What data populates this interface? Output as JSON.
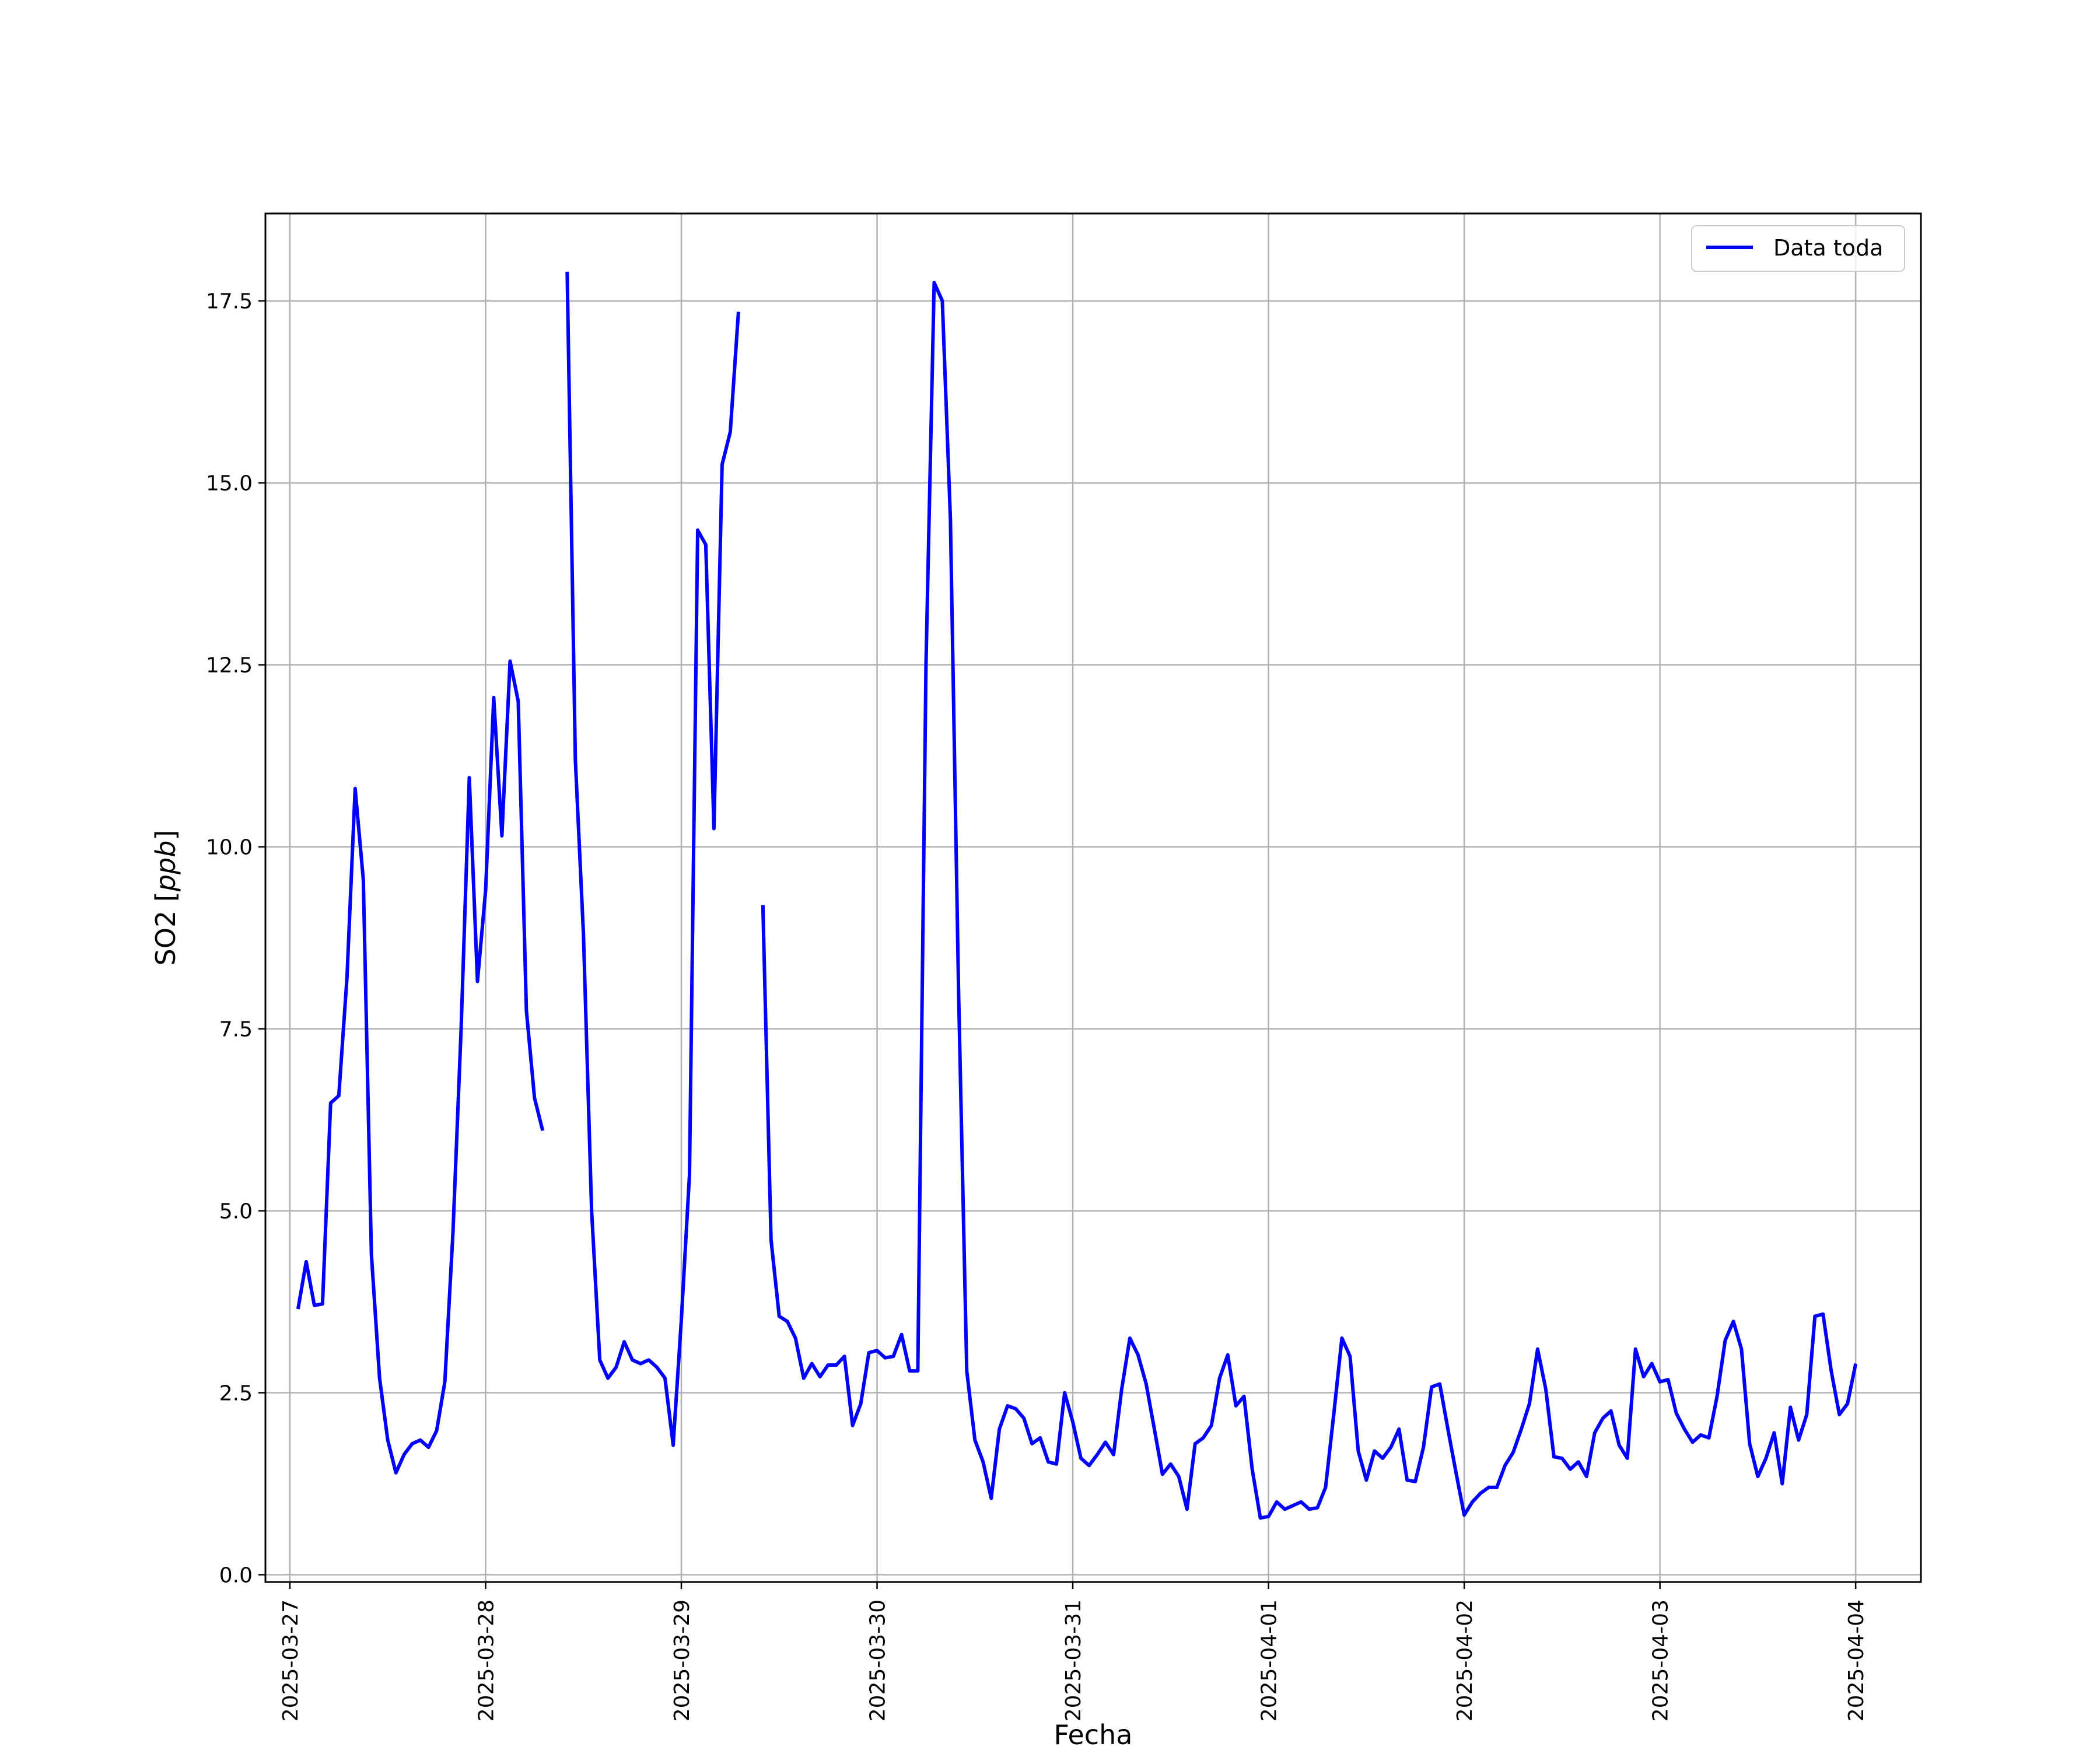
{
  "chart_data": {
    "type": "line",
    "title": "",
    "xlabel": "Fecha",
    "ylabel": "SO2 [ppb]",
    "ylabel_parts": {
      "prefix": "SO2 [",
      "unit": "ppb",
      "suffix": "]"
    },
    "xlim": [
      "2025-03-26T21:00",
      "2025-04-04T08:00"
    ],
    "ylim": [
      -0.1,
      18.7
    ],
    "x_ticks": [
      "2025-03-27",
      "2025-03-28",
      "2025-03-29",
      "2025-03-30",
      "2025-03-31",
      "2025-04-01",
      "2025-04-02",
      "2025-04-03",
      "2025-04-04"
    ],
    "y_ticks": [
      0.0,
      2.5,
      5.0,
      7.5,
      10.0,
      12.5,
      15.0,
      17.5
    ],
    "y_tick_labels": [
      "0.0",
      "2.5",
      "5.0",
      "7.5",
      "10.0",
      "12.5",
      "15.0",
      "17.5"
    ],
    "grid": true,
    "legend": {
      "position": "top-right",
      "entries": [
        "Data toda"
      ]
    },
    "colors": {
      "series": "#0000ff",
      "grid": "#b0b0b0",
      "axes": "#000000"
    },
    "series": [
      {
        "name": "Data toda",
        "segments": [
          [
            [
              "2025-03-27T01:00",
              3.65
            ],
            [
              "2025-03-27T02:00",
              4.3
            ],
            [
              "2025-03-27T03:00",
              3.7
            ],
            [
              "2025-03-27T04:00",
              3.72
            ],
            [
              "2025-03-27T05:00",
              6.48
            ],
            [
              "2025-03-27T06:00",
              6.58
            ],
            [
              "2025-03-27T07:00",
              8.2
            ],
            [
              "2025-03-27T08:00",
              10.8
            ],
            [
              "2025-03-27T09:00",
              9.55
            ],
            [
              "2025-03-27T10:00",
              4.4
            ],
            [
              "2025-03-27T11:00",
              2.7
            ],
            [
              "2025-03-27T12:00",
              1.85
            ],
            [
              "2025-03-27T13:00",
              1.4
            ],
            [
              "2025-03-27T14:00",
              1.65
            ],
            [
              "2025-03-27T15:00",
              1.8
            ],
            [
              "2025-03-27T16:00",
              1.85
            ],
            [
              "2025-03-27T17:00",
              1.75
            ],
            [
              "2025-03-27T18:00",
              1.98
            ],
            [
              "2025-03-27T19:00",
              2.65
            ],
            [
              "2025-03-27T20:00",
              4.7
            ],
            [
              "2025-03-27T21:00",
              7.5
            ],
            [
              "2025-03-27T22:00",
              10.95
            ],
            [
              "2025-03-27T23:00",
              8.15
            ],
            [
              "2025-03-28T00:00",
              9.4
            ],
            [
              "2025-03-28T01:00",
              12.05
            ],
            [
              "2025-03-28T02:00",
              10.15
            ],
            [
              "2025-03-28T03:00",
              12.55
            ],
            [
              "2025-03-28T04:00",
              12.0
            ],
            [
              "2025-03-28T05:00",
              7.75
            ],
            [
              "2025-03-28T06:00",
              6.55
            ],
            [
              "2025-03-28T07:00",
              6.1
            ]
          ],
          [
            [
              "2025-03-28T10:00",
              17.9
            ],
            [
              "2025-03-28T11:00",
              11.2
            ],
            [
              "2025-03-28T12:00",
              8.8
            ],
            [
              "2025-03-28T13:00",
              5.0
            ],
            [
              "2025-03-28T14:00",
              2.95
            ],
            [
              "2025-03-28T15:00",
              2.7
            ],
            [
              "2025-03-28T16:00",
              2.85
            ],
            [
              "2025-03-28T17:00",
              3.2
            ],
            [
              "2025-03-28T18:00",
              2.95
            ],
            [
              "2025-03-28T19:00",
              2.9
            ],
            [
              "2025-03-28T20:00",
              2.95
            ],
            [
              "2025-03-28T21:00",
              2.85
            ],
            [
              "2025-03-28T22:00",
              2.7
            ],
            [
              "2025-03-28T23:00",
              1.78
            ],
            [
              "2025-03-29T00:00",
              3.5
            ],
            [
              "2025-03-29T01:00",
              5.5
            ],
            [
              "2025-03-29T02:00",
              14.35
            ],
            [
              "2025-03-29T03:00",
              14.15
            ],
            [
              "2025-03-29T04:00",
              10.25
            ],
            [
              "2025-03-29T05:00",
              15.25
            ],
            [
              "2025-03-29T06:00",
              15.7
            ],
            [
              "2025-03-29T07:00",
              17.35
            ]
          ],
          [
            [
              "2025-03-29T10:00",
              9.2
            ],
            [
              "2025-03-29T11:00",
              4.6
            ],
            [
              "2025-03-29T12:00",
              3.55
            ],
            [
              "2025-03-29T13:00",
              3.48
            ],
            [
              "2025-03-29T14:00",
              3.25
            ],
            [
              "2025-03-29T15:00",
              2.7
            ],
            [
              "2025-03-29T16:00",
              2.9
            ],
            [
              "2025-03-29T17:00",
              2.72
            ],
            [
              "2025-03-29T18:00",
              2.88
            ],
            [
              "2025-03-29T19:00",
              2.88
            ],
            [
              "2025-03-29T20:00",
              3.0
            ],
            [
              "2025-03-29T21:00",
              2.05
            ],
            [
              "2025-03-29T22:00",
              2.35
            ],
            [
              "2025-03-29T23:00",
              3.05
            ],
            [
              "2025-03-30T00:00",
              3.08
            ],
            [
              "2025-03-30T01:00",
              2.98
            ],
            [
              "2025-03-30T02:00",
              3.0
            ],
            [
              "2025-03-30T03:00",
              3.3
            ],
            [
              "2025-03-30T04:00",
              2.8
            ],
            [
              "2025-03-30T05:00",
              2.8
            ],
            [
              "2025-03-30T06:00",
              12.5
            ],
            [
              "2025-03-30T07:00",
              17.75
            ],
            [
              "2025-03-30T08:00",
              17.5
            ],
            [
              "2025-03-30T09:00",
              14.5
            ],
            [
              "2025-03-30T10:00",
              8.0
            ],
            [
              "2025-03-30T11:00",
              2.8
            ],
            [
              "2025-03-30T12:00",
              1.85
            ],
            [
              "2025-03-30T13:00",
              1.55
            ],
            [
              "2025-03-30T14:00",
              1.05
            ],
            [
              "2025-03-30T15:00",
              2.0
            ],
            [
              "2025-03-30T16:00",
              2.32
            ],
            [
              "2025-03-30T17:00",
              2.28
            ],
            [
              "2025-03-30T18:00",
              2.15
            ],
            [
              "2025-03-30T19:00",
              1.8
            ],
            [
              "2025-03-30T20:00",
              1.88
            ],
            [
              "2025-03-30T21:00",
              1.55
            ],
            [
              "2025-03-30T22:00",
              1.52
            ],
            [
              "2025-03-30T23:00",
              2.5
            ],
            [
              "2025-03-31T00:00",
              2.1
            ],
            [
              "2025-03-31T01:00",
              1.6
            ],
            [
              "2025-03-31T02:00",
              1.5
            ],
            [
              "2025-03-31T03:00",
              1.65
            ],
            [
              "2025-03-31T04:00",
              1.82
            ],
            [
              "2025-03-31T05:00",
              1.65
            ],
            [
              "2025-03-31T06:00",
              2.55
            ],
            [
              "2025-03-31T07:00",
              3.25
            ],
            [
              "2025-03-31T08:00",
              3.02
            ],
            [
              "2025-03-31T09:00",
              2.62
            ],
            [
              "2025-03-31T10:00",
              2.0
            ],
            [
              "2025-03-31T11:00",
              1.38
            ],
            [
              "2025-03-31T12:00",
              1.52
            ],
            [
              "2025-03-31T13:00",
              1.35
            ],
            [
              "2025-03-31T14:00",
              0.9
            ],
            [
              "2025-03-31T15:00",
              1.8
            ],
            [
              "2025-03-31T16:00",
              1.88
            ],
            [
              "2025-03-31T17:00",
              2.05
            ],
            [
              "2025-03-31T18:00",
              2.7
            ],
            [
              "2025-03-31T19:00",
              3.02
            ],
            [
              "2025-03-31T20:00",
              2.32
            ],
            [
              "2025-03-31T21:00",
              2.45
            ],
            [
              "2025-03-31T22:00",
              1.45
            ],
            [
              "2025-03-31T23:00",
              0.78
            ],
            [
              "2025-04-01T00:00",
              0.8
            ],
            [
              "2025-04-01T01:00",
              1.0
            ],
            [
              "2025-04-01T02:00",
              0.9
            ],
            [
              "2025-04-01T03:00",
              0.95
            ],
            [
              "2025-04-01T04:00",
              1.0
            ],
            [
              "2025-04-01T05:00",
              0.9
            ],
            [
              "2025-04-01T06:00",
              0.92
            ],
            [
              "2025-04-01T07:00",
              1.2
            ],
            [
              "2025-04-01T08:00",
              2.2
            ],
            [
              "2025-04-01T09:00",
              3.25
            ],
            [
              "2025-04-01T10:00",
              3.0
            ],
            [
              "2025-04-01T11:00",
              1.7
            ],
            [
              "2025-04-01T12:00",
              1.3
            ],
            [
              "2025-04-01T13:00",
              1.7
            ],
            [
              "2025-04-01T14:00",
              1.6
            ],
            [
              "2025-04-01T15:00",
              1.75
            ],
            [
              "2025-04-01T16:00",
              2.0
            ],
            [
              "2025-04-01T17:00",
              1.3
            ],
            [
              "2025-04-01T18:00",
              1.28
            ],
            [
              "2025-04-01T19:00",
              1.75
            ],
            [
              "2025-04-01T20:00",
              2.58
            ],
            [
              "2025-04-01T21:00",
              2.62
            ],
            [
              "2025-04-01T22:00",
              2.0
            ],
            [
              "2025-04-01T23:00",
              1.4
            ],
            [
              "2025-04-02T00:00",
              0.82
            ],
            [
              "2025-04-02T01:00",
              1.0
            ],
            [
              "2025-04-02T02:00",
              1.12
            ],
            [
              "2025-04-02T03:00",
              1.2
            ],
            [
              "2025-04-02T04:00",
              1.2
            ],
            [
              "2025-04-02T05:00",
              1.5
            ],
            [
              "2025-04-02T06:00",
              1.68
            ],
            [
              "2025-04-02T07:00",
              2.0
            ],
            [
              "2025-04-02T08:00",
              2.35
            ],
            [
              "2025-04-02T09:00",
              3.1
            ],
            [
              "2025-04-02T10:00",
              2.55
            ],
            [
              "2025-04-02T11:00",
              1.62
            ],
            [
              "2025-04-02T12:00",
              1.6
            ],
            [
              "2025-04-02T13:00",
              1.45
            ],
            [
              "2025-04-02T14:00",
              1.55
            ],
            [
              "2025-04-02T15:00",
              1.35
            ],
            [
              "2025-04-02T16:00",
              1.95
            ],
            [
              "2025-04-02T17:00",
              2.15
            ],
            [
              "2025-04-02T18:00",
              2.25
            ],
            [
              "2025-04-02T19:00",
              1.78
            ],
            [
              "2025-04-02T20:00",
              1.6
            ],
            [
              "2025-04-02T21:00",
              3.1
            ],
            [
              "2025-04-02T22:00",
              2.72
            ],
            [
              "2025-04-02T23:00",
              2.9
            ],
            [
              "2025-04-03T00:00",
              2.65
            ],
            [
              "2025-04-03T01:00",
              2.68
            ],
            [
              "2025-04-03T02:00",
              2.22
            ],
            [
              "2025-04-03T03:00",
              2.0
            ],
            [
              "2025-04-03T04:00",
              1.82
            ],
            [
              "2025-04-03T05:00",
              1.92
            ],
            [
              "2025-04-03T06:00",
              1.88
            ],
            [
              "2025-04-03T07:00",
              2.45
            ],
            [
              "2025-04-03T08:00",
              3.22
            ],
            [
              "2025-04-03T09:00",
              3.48
            ],
            [
              "2025-04-03T10:00",
              3.1
            ],
            [
              "2025-04-03T11:00",
              1.8
            ],
            [
              "2025-04-03T12:00",
              1.35
            ],
            [
              "2025-04-03T13:00",
              1.6
            ],
            [
              "2025-04-03T14:00",
              1.95
            ],
            [
              "2025-04-03T15:00",
              1.25
            ],
            [
              "2025-04-03T16:00",
              2.3
            ],
            [
              "2025-04-03T17:00",
              1.85
            ],
            [
              "2025-04-03T18:00",
              2.2
            ],
            [
              "2025-04-03T19:00",
              3.55
            ],
            [
              "2025-04-03T20:00",
              3.58
            ],
            [
              "2025-04-03T21:00",
              2.8
            ],
            [
              "2025-04-03T22:00",
              2.2
            ],
            [
              "2025-04-03T23:00",
              2.35
            ],
            [
              "2025-04-04T00:00",
              2.9
            ]
          ]
        ]
      }
    ]
  }
}
